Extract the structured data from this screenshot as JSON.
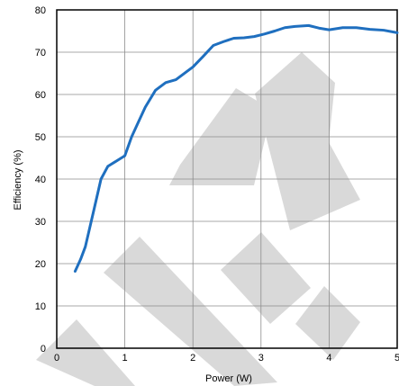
{
  "chart_data": {
    "type": "line",
    "xlabel": "Power (W)",
    "ylabel": "Efficiency (%)",
    "xlim": [
      0,
      5
    ],
    "ylim": [
      0,
      80
    ],
    "xticks": [
      0,
      1,
      2,
      3,
      4,
      5
    ],
    "yticks": [
      0,
      10,
      20,
      30,
      40,
      50,
      60,
      70,
      80
    ],
    "grid": true,
    "series": [
      {
        "color": "#1f6fbf",
        "x": [
          0.27,
          0.35,
          0.42,
          0.55,
          0.65,
          0.75,
          0.85,
          1.0,
          1.1,
          1.2,
          1.3,
          1.45,
          1.6,
          1.75,
          1.9,
          2.0,
          2.15,
          2.3,
          2.45,
          2.6,
          2.75,
          2.9,
          3.05,
          3.2,
          3.35,
          3.5,
          3.7,
          3.85,
          4.0,
          4.2,
          4.4,
          4.6,
          4.8,
          5.0
        ],
        "y": [
          18.2,
          21,
          24,
          33,
          40,
          43,
          44,
          45.5,
          50,
          53.5,
          57,
          61,
          62.8,
          63.5,
          65.3,
          66.5,
          69,
          71.6,
          72.5,
          73.3,
          73.4,
          73.7,
          74.3,
          75,
          75.8,
          76.1,
          76.3,
          75.7,
          75.3,
          75.8,
          75.8,
          75.4,
          75.2,
          74.6
        ]
      }
    ]
  }
}
